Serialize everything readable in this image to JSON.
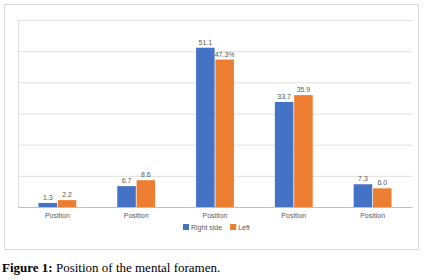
{
  "chart_data": {
    "type": "bar",
    "title": "Figure 1: Position of the mental foramen.",
    "categories": [
      "Position",
      "Position",
      "Position",
      "Position",
      "Position"
    ],
    "series": [
      {
        "name": "Right side",
        "color": "#4472c4",
        "values": [
          1.3,
          6.7,
          51.1,
          33.7,
          7.3
        ]
      },
      {
        "name": "Left",
        "color": "#ed7d31",
        "values": [
          2.2,
          8.6,
          47.3,
          35.9,
          6.0
        ],
        "value_labels": [
          "2.2",
          "8.6",
          "47.3%",
          "35.9",
          "6.0"
        ]
      }
    ],
    "ylim": [
      0,
      60
    ],
    "yticks": [
      0,
      10,
      20,
      30,
      40,
      50,
      60
    ],
    "grid": true,
    "legend": "bottom",
    "data_labels": true,
    "tick_labels": "x"
  }
}
